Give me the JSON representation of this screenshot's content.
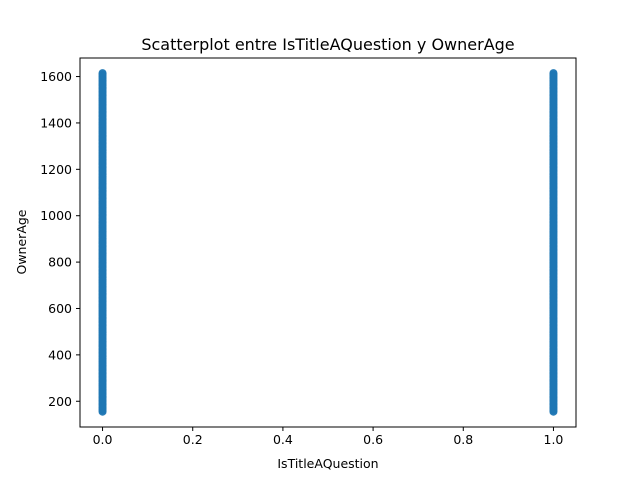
{
  "chart_data": {
    "type": "scatter",
    "title": "Scatterplot entre IsTitleAQuestion y OwnerAge",
    "xlabel": "IsTitleAQuestion",
    "ylabel": "OwnerAge",
    "xlim": [
      -0.05,
      1.05
    ],
    "ylim": [
      89,
      1680
    ],
    "xticks": [
      0.0,
      0.2,
      0.4,
      0.6,
      0.8,
      1.0
    ],
    "xtick_labels": [
      "0.0",
      "0.2",
      "0.4",
      "0.6",
      "0.8",
      "1.0"
    ],
    "yticks": [
      200,
      400,
      600,
      800,
      1000,
      1200,
      1400,
      1600
    ],
    "ytick_labels": [
      "200",
      "400",
      "600",
      "800",
      "1000",
      "1200",
      "1400",
      "1600"
    ],
    "grid": false,
    "marker_color": "#1f77b4",
    "series": [
      {
        "x": 0,
        "y_range": [
          155,
          1615
        ]
      },
      {
        "x": 1,
        "y_range": [
          155,
          1615
        ]
      }
    ]
  }
}
